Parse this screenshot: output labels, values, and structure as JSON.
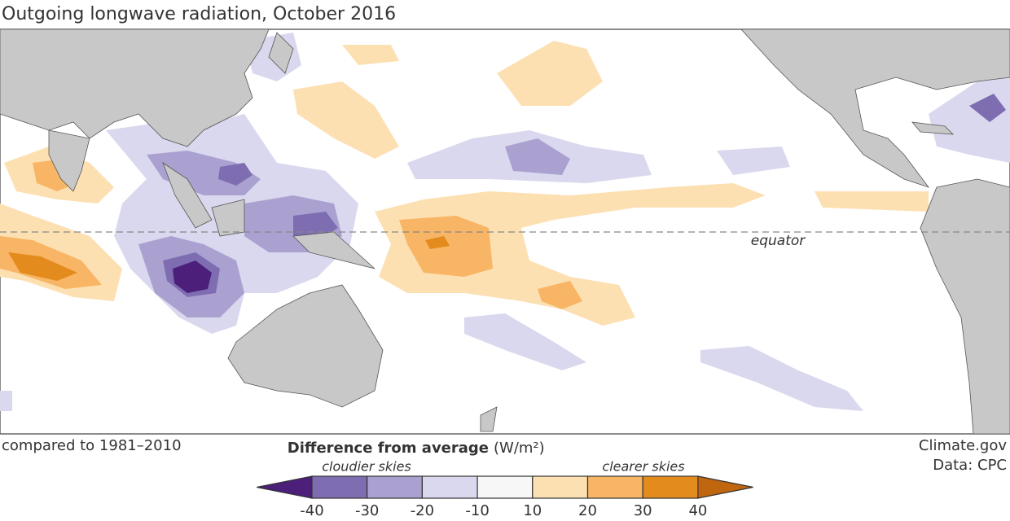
{
  "header": {
    "title": "Outgoing longwave radiation, October 2016"
  },
  "map": {
    "equator_label": "equator"
  },
  "footer": {
    "baseline": "compared to 1981–2010",
    "credit": "Climate.gov",
    "source": "Data: CPC"
  },
  "legend": {
    "title": "Difference from average",
    "units": "(W/m²)",
    "low_label": "cloudier skies",
    "high_label": "clearer skies",
    "ticks": [
      -40,
      -30,
      -20,
      -10,
      10,
      20,
      30,
      40
    ],
    "colors": [
      "#4b1f7a",
      "#7e6db0",
      "#aaa1d1",
      "#d9d8ee",
      "#f7f7f7",
      "#fde0b2",
      "#f8b565",
      "#e38b1c",
      "#c0660f"
    ]
  }
}
